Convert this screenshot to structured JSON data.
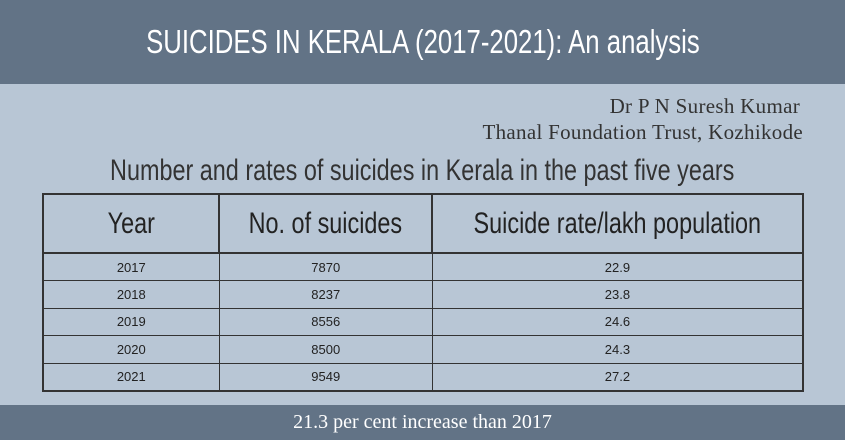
{
  "title": "SUICIDES IN KERALA (2017-2021): An analysis",
  "author": {
    "name": "Dr P N Suresh Kumar",
    "organization": "Thanal Foundation Trust, Kozhikode"
  },
  "subtitle": "Number and rates of suicides in Kerala in the past five years",
  "table": {
    "headers": [
      "Year",
      "No. of suicides",
      "Suicide rate/lakh population"
    ],
    "rows": [
      [
        "2017",
        "7870",
        "22.9"
      ],
      [
        "2018",
        "8237",
        "23.8"
      ],
      [
        "2019",
        "8556",
        "24.6"
      ],
      [
        "2020",
        "8500",
        "24.3"
      ],
      [
        "2021",
        "9549",
        "27.2"
      ]
    ]
  },
  "footer": "21.3 per cent increase than 2017",
  "colors": {
    "header_band": "#627386",
    "background": "#b8c6d5"
  }
}
